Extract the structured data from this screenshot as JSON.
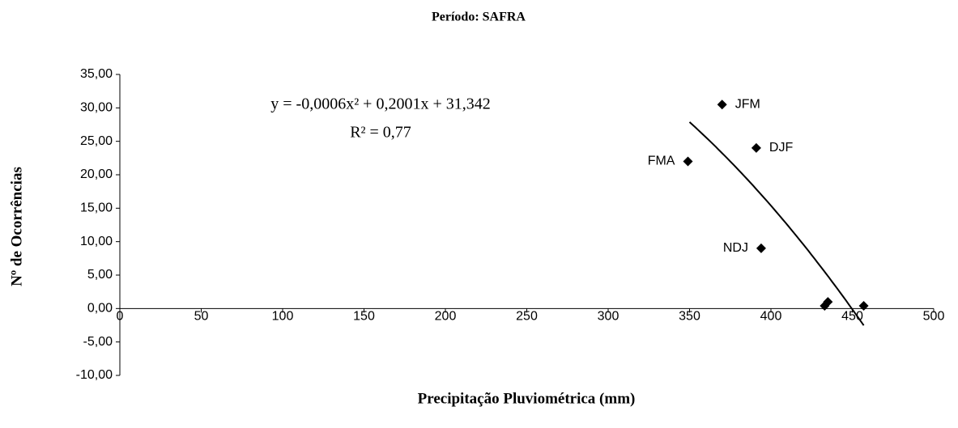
{
  "chart_data": {
    "type": "scatter",
    "title": "Período: SAFRA",
    "xlabel": "Precipitação Pluviométrica (mm)",
    "ylabel": "Nº de Ocorrências",
    "series": [
      {
        "x": [
          370,
          391,
          349,
          394,
          433,
          435,
          457
        ],
        "values": [
          30.5,
          24,
          22,
          9,
          0.4,
          1,
          0.4
        ],
        "color": "#000000"
      }
    ],
    "point_labels": [
      "JFM",
      "DJF",
      "FMA",
      "NDJ",
      null,
      null,
      null
    ],
    "trendline": {
      "equation": "y = -0,0006x² + 0,2001x + 31,342",
      "r2": "R² = 0,77",
      "coefficients": [
        -0.0006,
        0.2001,
        31.342
      ],
      "x": [
        350,
        457
      ],
      "color": "#000000"
    },
    "xlim": [
      0,
      500
    ],
    "xticks": [
      0,
      50,
      100,
      150,
      200,
      250,
      300,
      350,
      400,
      450,
      500
    ],
    "ylim": [
      -10,
      35
    ],
    "yticks": [
      {
        "value": -10,
        "label": "-10,00"
      },
      {
        "value": -5,
        "label": "-5,00"
      },
      {
        "value": 0,
        "label": "0,00"
      },
      {
        "value": 5,
        "label": "5,00"
      },
      {
        "value": 10,
        "label": "10,00"
      },
      {
        "value": 15,
        "label": "15,00"
      },
      {
        "value": 20,
        "label": "20,00"
      },
      {
        "value": 25,
        "label": "25,00"
      },
      {
        "value": 30,
        "label": "30,00"
      },
      {
        "value": 35,
        "label": "35,00"
      }
    ]
  }
}
